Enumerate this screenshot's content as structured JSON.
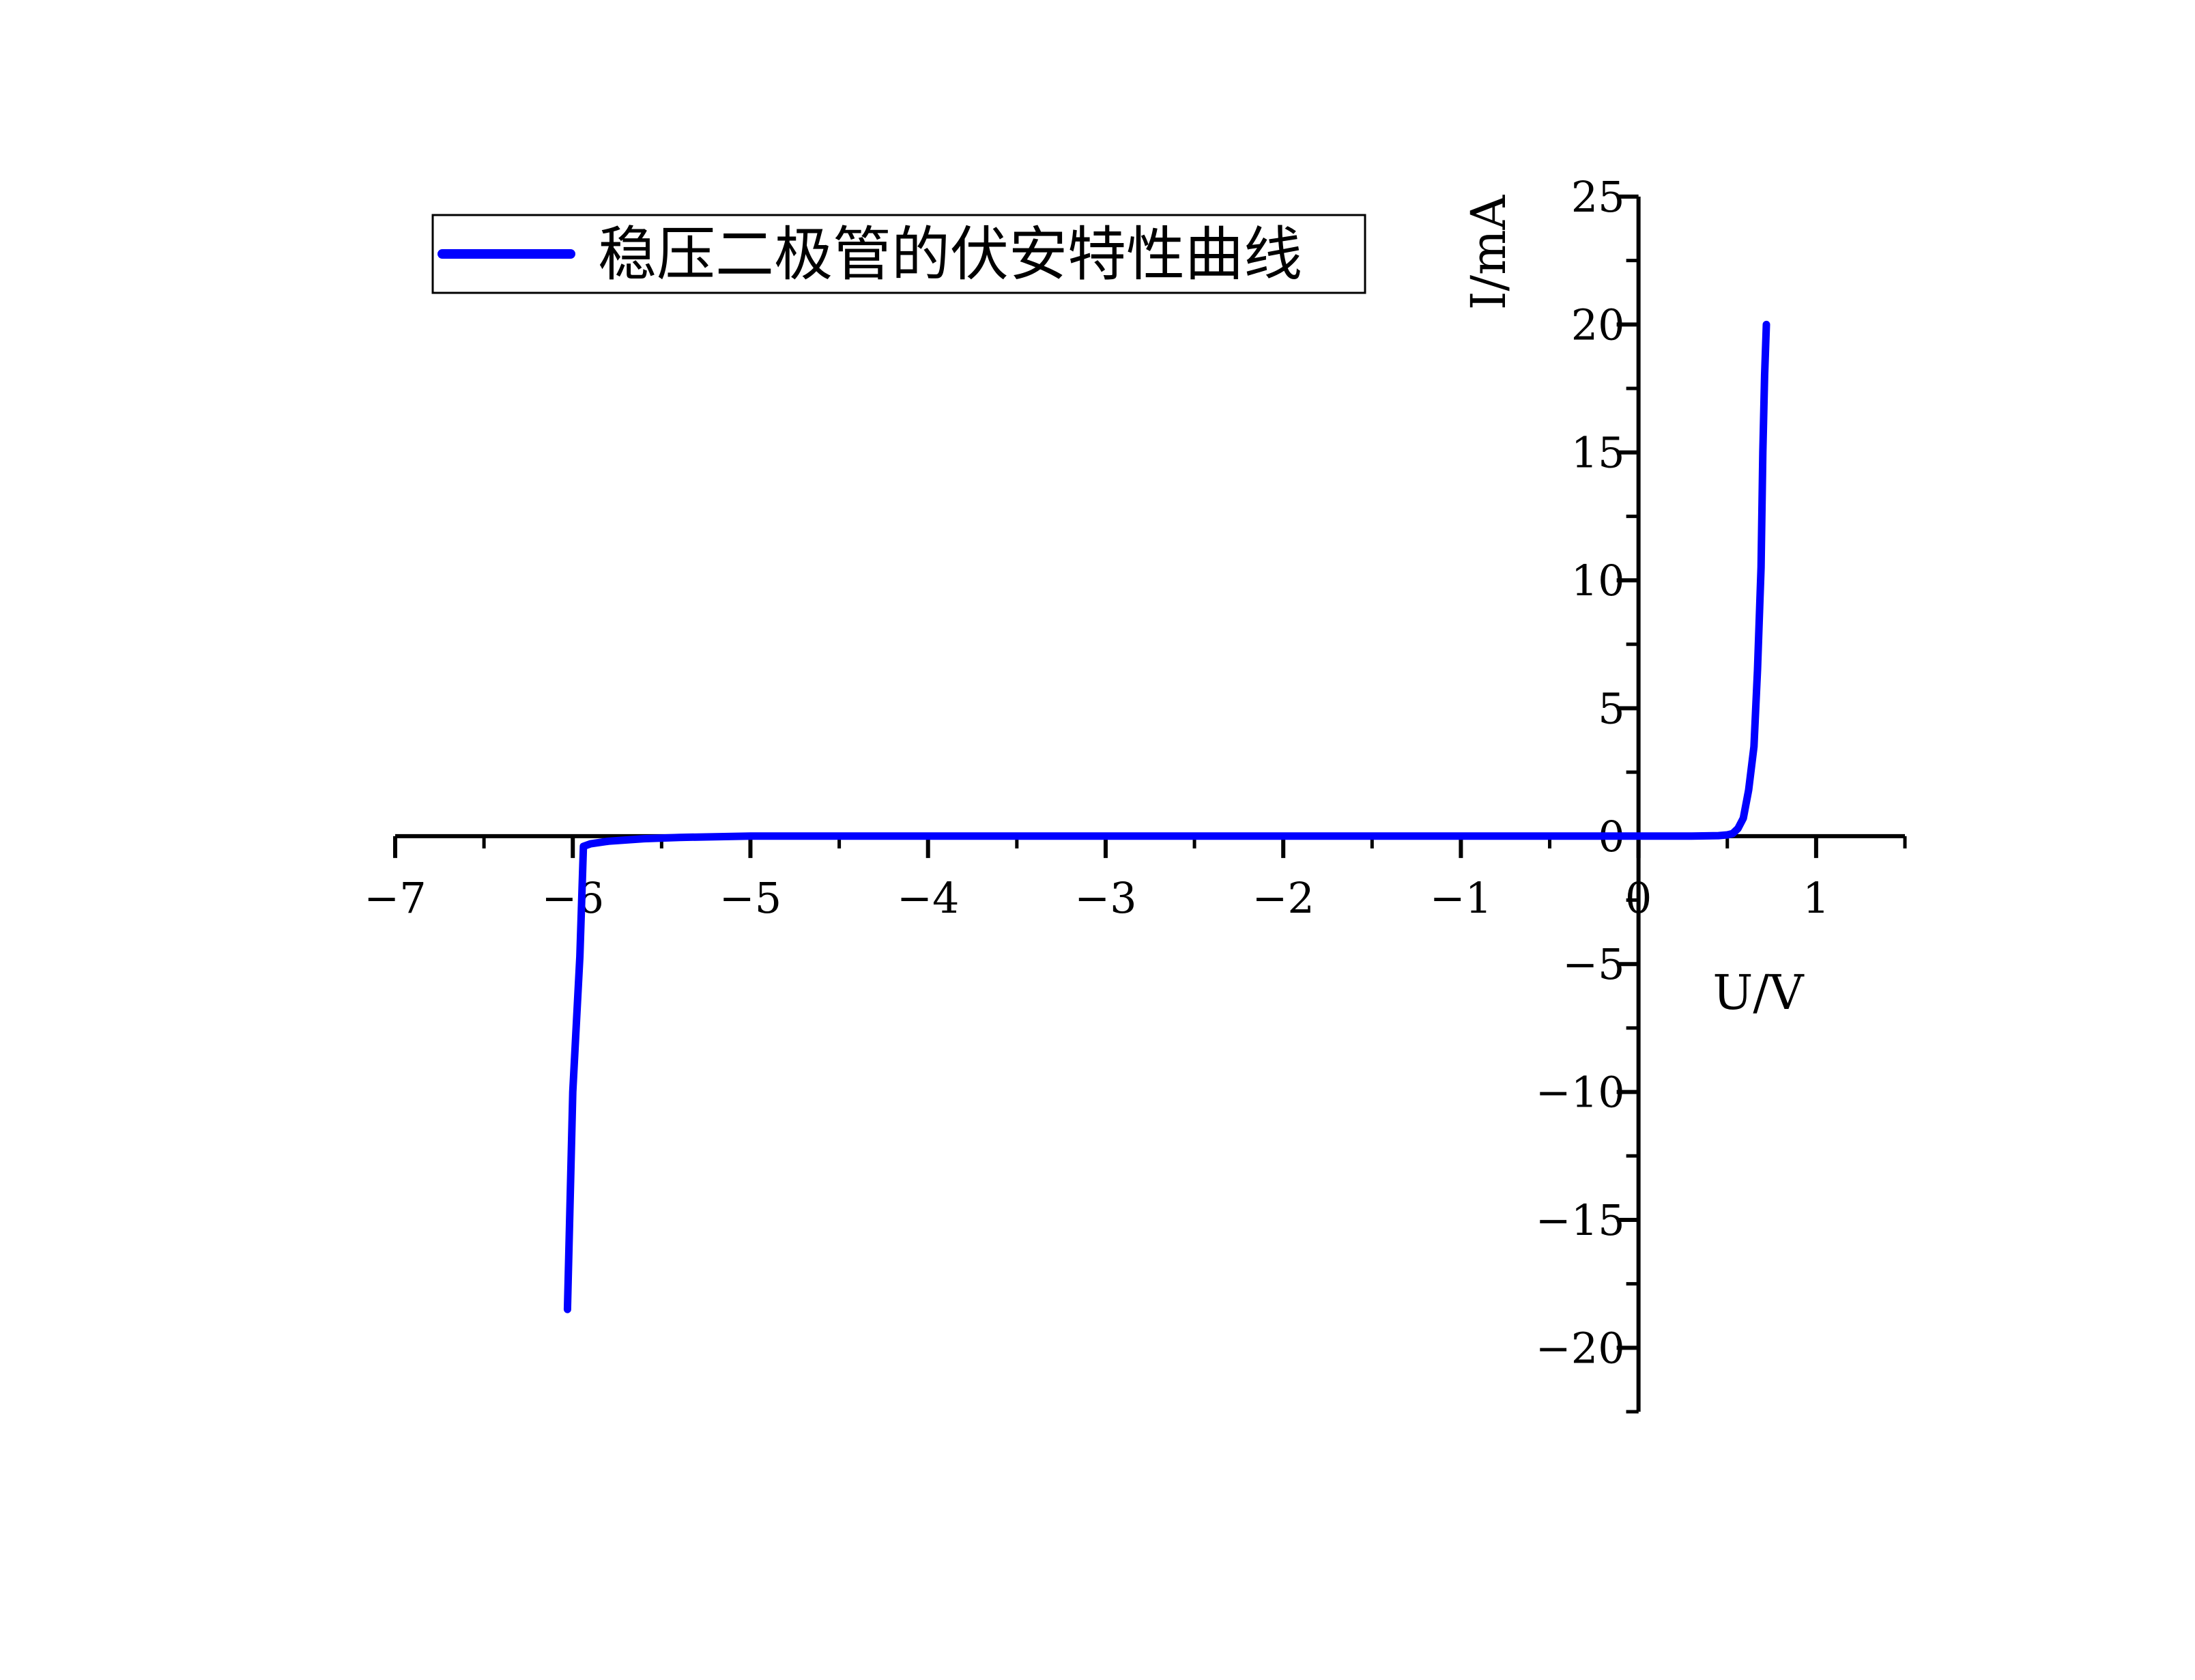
{
  "chart_data": {
    "type": "line",
    "xlabel": "U/V",
    "ylabel": "I/mA",
    "xlim": [
      -7,
      1.5
    ],
    "ylim": [
      -22.5,
      25
    ],
    "x_ticks": [
      -7,
      -6,
      -5,
      -4,
      -3,
      -2,
      -1,
      0,
      1
    ],
    "x_tick_labels": [
      "−7",
      "−6",
      "−5",
      "−4",
      "−3",
      "−2",
      "−1",
      "0",
      "1"
    ],
    "y_ticks": [
      -20,
      -15,
      -10,
      -5,
      0,
      5,
      10,
      15,
      20,
      25
    ],
    "y_tick_labels": [
      "−20",
      "−15",
      "−10",
      "−5",
      "0",
      "5",
      "10",
      "15",
      "20",
      "25"
    ],
    "grid": false,
    "legend_position": "top-left",
    "series": [
      {
        "name": "稳压二极管的伏安特性曲线",
        "color": "#0000ff",
        "x": [
          -6.03,
          -6.0,
          -5.96,
          -5.94,
          -5.9,
          -5.8,
          -5.6,
          -5.4,
          -5.0,
          -4.0,
          -3.0,
          -2.0,
          -1.0,
          0.0,
          0.3,
          0.45,
          0.5,
          0.53,
          0.56,
          0.59,
          0.62,
          0.65,
          0.67,
          0.69,
          0.7,
          0.71,
          0.72
        ],
        "y": [
          -18.5,
          -10.0,
          -4.7,
          -0.4,
          -0.3,
          -0.2,
          -0.1,
          -0.05,
          0.0,
          0.0,
          0.0,
          0.0,
          0.0,
          0.0,
          0.0,
          0.02,
          0.05,
          0.1,
          0.3,
          0.7,
          1.8,
          3.5,
          6.5,
          10.5,
          15.0,
          18.0,
          20.0
        ]
      }
    ]
  }
}
